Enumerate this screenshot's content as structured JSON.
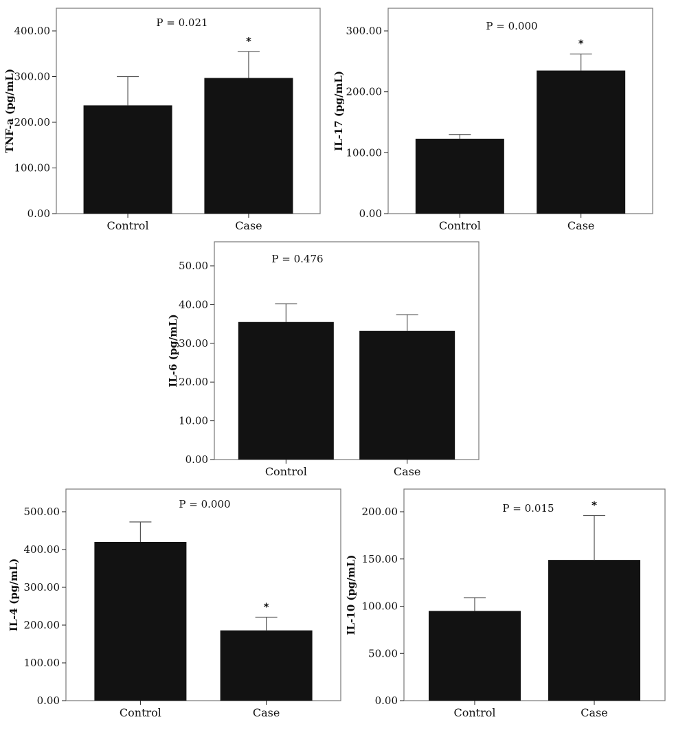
{
  "chart_data": [
    {
      "type": "bar",
      "ylabel": "TNF-a (pg/mL)",
      "annotation": "P = 0.021",
      "categories": [
        "Control",
        "Case"
      ],
      "values": [
        237,
        297
      ],
      "error_upper": [
        300,
        355
      ],
      "significance": [
        "",
        "*"
      ],
      "ylim": [
        0,
        400
      ],
      "yticks": [
        0,
        100,
        200,
        300,
        400
      ],
      "ytick_labels": [
        "0.00",
        "100.00",
        "200.00",
        "300.00",
        "400.00"
      ]
    },
    {
      "type": "bar",
      "ylabel": "IL-17 (pg/mL)",
      "annotation": "P = 0.000",
      "categories": [
        "Control",
        "Case"
      ],
      "values": [
        123,
        235
      ],
      "error_upper": [
        130,
        262
      ],
      "significance": [
        "",
        "*"
      ],
      "ylim": [
        0,
        300
      ],
      "yticks": [
        0,
        100,
        200,
        300
      ],
      "ytick_labels": [
        "0.00",
        "100.00",
        "200.00",
        "300.00"
      ]
    },
    {
      "type": "bar",
      "ylabel": "IL-6 (pg/mL)",
      "annotation": "P = 0.476",
      "categories": [
        "Control",
        "Case"
      ],
      "values": [
        35.5,
        33.2
      ],
      "error_upper": [
        40.2,
        37.4
      ],
      "significance": [
        "",
        ""
      ],
      "ylim": [
        0,
        50
      ],
      "yticks": [
        0,
        10,
        20,
        30,
        40,
        50
      ],
      "ytick_labels": [
        "0.00",
        "10.00",
        "20.00",
        "30.00",
        "40.00",
        "50.00"
      ]
    },
    {
      "type": "bar",
      "ylabel": "IL-4 (pg/mL)",
      "annotation": "P = 0.000",
      "categories": [
        "Control",
        "Case"
      ],
      "values": [
        420,
        186
      ],
      "error_upper": [
        473,
        221
      ],
      "significance": [
        "",
        "*"
      ],
      "ylim": [
        0,
        500
      ],
      "yticks": [
        0,
        100,
        200,
        300,
        400,
        500
      ],
      "ytick_labels": [
        "0.00",
        "100.00",
        "200.00",
        "300.00",
        "400.00",
        "500.00"
      ]
    },
    {
      "type": "bar",
      "ylabel": "IL-10 (pg/mL)",
      "annotation": "P = 0.015",
      "categories": [
        "Control",
        "Case"
      ],
      "values": [
        95,
        149
      ],
      "error_upper": [
        109,
        196
      ],
      "significance": [
        "",
        "*"
      ],
      "ylim": [
        0,
        200
      ],
      "yticks": [
        0,
        50,
        100,
        150,
        200
      ],
      "ytick_labels": [
        "0.00",
        "50.00",
        "100.00",
        "150.00",
        "200.00"
      ]
    }
  ]
}
